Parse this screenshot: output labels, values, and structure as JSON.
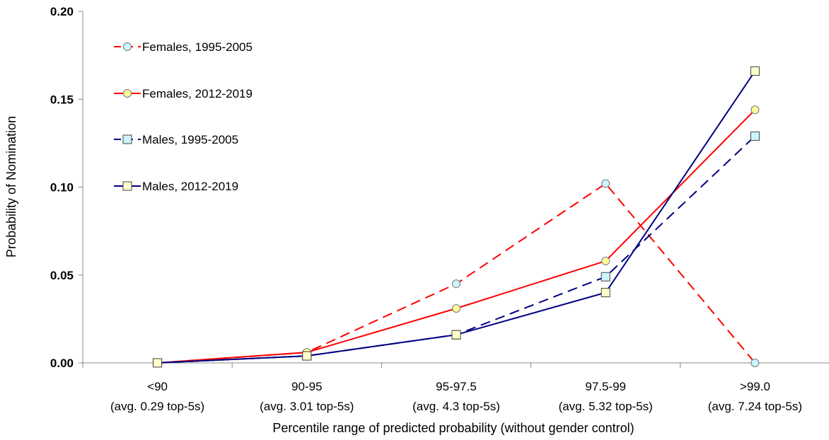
{
  "chart_data": {
    "type": "line",
    "xlabel": "Percentile range of predicted probability (without gender control)",
    "ylabel": "Probability of Nomination",
    "ylim": [
      0,
      0.2
    ],
    "yticks": [
      "0.00",
      "0.05",
      "0.10",
      "0.15",
      "0.20"
    ],
    "categories": [
      {
        "range": "<90",
        "avg": "(avg. 0.29 top-5s)"
      },
      {
        "range": "90-95",
        "avg": "(avg. 3.01 top-5s)"
      },
      {
        "range": "95-97.5",
        "avg": "(avg. 4.3 top-5s)"
      },
      {
        "range": "97.5-99",
        "avg": "(avg. 5.32 top-5s)"
      },
      {
        "range": ">99.0",
        "avg": "(avg. 7.24 top-5s)"
      }
    ],
    "grid": false,
    "legend_position": "top-left",
    "series": [
      {
        "name": "Females, 1995-2005",
        "color": "#ff0000",
        "dash": "dashed",
        "marker": "circle",
        "marker_fill": "#ccf5ff",
        "values": [
          0.0,
          0.006,
          0.045,
          0.102,
          0.0
        ]
      },
      {
        "name": "Females, 2012-2019",
        "color": "#ff0000",
        "dash": "solid",
        "marker": "circle",
        "marker_fill": "#ffff99",
        "values": [
          0.0,
          0.006,
          0.031,
          0.058,
          0.144
        ]
      },
      {
        "name": "Males, 1995-2005",
        "color": "#000080",
        "dash": "dashed",
        "marker": "square",
        "marker_fill": "#ccf5ff",
        "values": [
          0.0,
          0.004,
          0.016,
          0.049,
          0.129
        ]
      },
      {
        "name": "Males, 2012-2019",
        "color": "#000080",
        "dash": "solid",
        "marker": "square",
        "marker_fill": "#ffffcc",
        "values": [
          0.0,
          0.004,
          0.016,
          0.04,
          0.166
        ]
      }
    ]
  }
}
